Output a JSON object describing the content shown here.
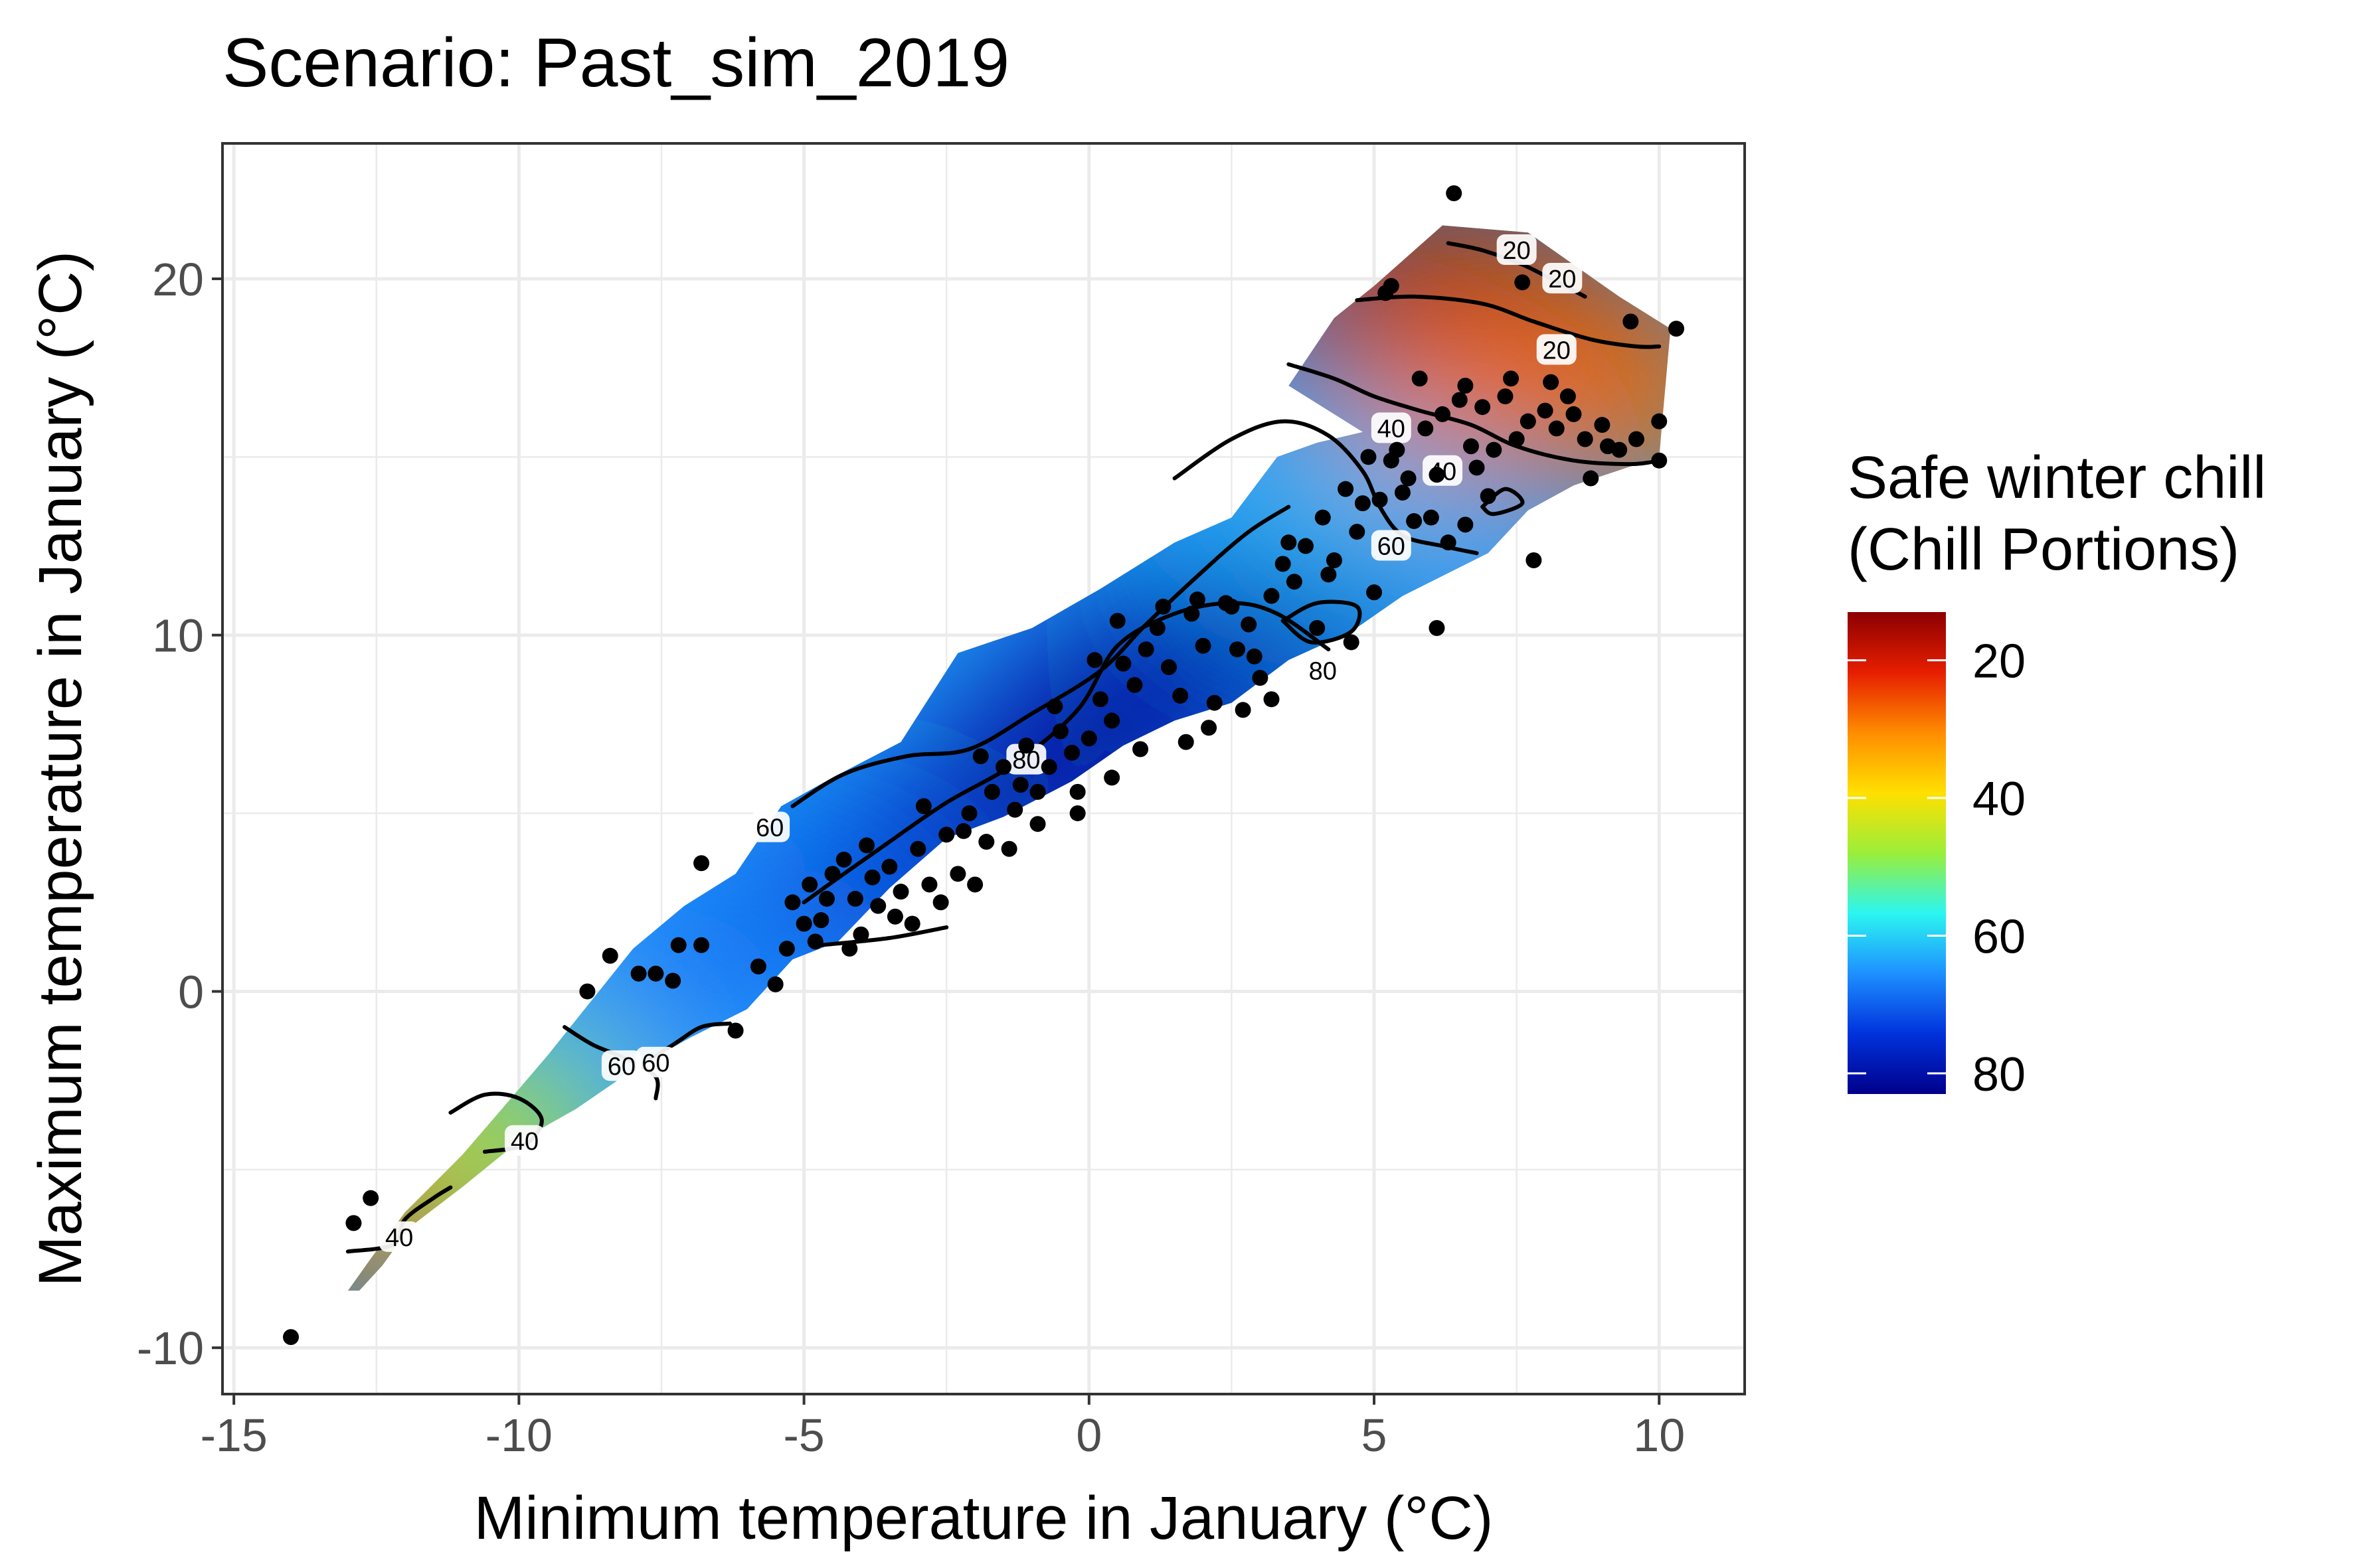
{
  "chart_data": {
    "type": "heatmap",
    "title": "Scenario: Past_sim_2019",
    "xlabel": "Minimum temperature in January (°C)",
    "ylabel": "Maximum temperature in January (°C)",
    "xlim": [
      -15.2,
      11.5
    ],
    "ylim": [
      -11.3,
      23.8
    ],
    "x_ticks": [
      -15,
      -10,
      -5,
      0,
      5,
      10
    ],
    "x_tick_labels": [
      "-15",
      "-10",
      "-5",
      "0",
      "5",
      "10"
    ],
    "y_ticks": [
      -10,
      0,
      10,
      20
    ],
    "y_tick_labels": [
      "-10",
      "0",
      "10",
      "20"
    ],
    "grid": true,
    "legend": {
      "title_line1": "Safe winter chill",
      "title_line2": "(Chill Portions)",
      "placement": "right",
      "range": [
        13,
        83
      ],
      "ticks": [
        20,
        40,
        60,
        80
      ],
      "tick_labels": [
        "20",
        "40",
        "60",
        "80"
      ],
      "colors": [
        "#8B0000",
        "#E61E00",
        "#FF8C00",
        "#FFE000",
        "#9BEE3A",
        "#2BF6F0",
        "#1E90FF",
        "#0032DC",
        "#00008B"
      ]
    },
    "colors": {
      "grid": "#EBEBEB",
      "panel_border": "#333333",
      "contour": "#000000",
      "points": "#000000"
    },
    "surface_polygon": [
      [
        -13.0,
        -8.4
      ],
      [
        -12.6,
        -7.5
      ],
      [
        -12.0,
        -6.2
      ],
      [
        -11.0,
        -4.6
      ],
      [
        -10.3,
        -3.3
      ],
      [
        -9.5,
        -1.8
      ],
      [
        -8.7,
        -0.2
      ],
      [
        -8.0,
        1.2
      ],
      [
        -7.1,
        2.4
      ],
      [
        -6.2,
        3.3
      ],
      [
        -5.4,
        5.2
      ],
      [
        -4.5,
        6.0
      ],
      [
        -3.3,
        7.0
      ],
      [
        -2.3,
        9.5
      ],
      [
        -1.0,
        10.2
      ],
      [
        0.2,
        11.3
      ],
      [
        1.5,
        12.6
      ],
      [
        2.5,
        13.3
      ],
      [
        3.3,
        15.0
      ],
      [
        4.0,
        15.4
      ],
      [
        4.8,
        15.7
      ],
      [
        3.5,
        17.0
      ],
      [
        4.3,
        18.9
      ],
      [
        5.0,
        19.8
      ],
      [
        6.2,
        21.5
      ],
      [
        7.7,
        21.3
      ],
      [
        9.3,
        19.5
      ],
      [
        10.2,
        18.6
      ],
      [
        10.0,
        15.0
      ],
      [
        8.5,
        14.2
      ],
      [
        7.7,
        13.5
      ],
      [
        7.0,
        12.3
      ],
      [
        5.5,
        11.1
      ],
      [
        4.6,
        10.1
      ],
      [
        3.5,
        9.3
      ],
      [
        2.5,
        8.1
      ],
      [
        1.5,
        7.6
      ],
      [
        0.6,
        6.9
      ],
      [
        -0.3,
        5.9
      ],
      [
        -1.5,
        4.9
      ],
      [
        -2.5,
        4.3
      ],
      [
        -3.5,
        2.9
      ],
      [
        -4.4,
        1.4
      ],
      [
        -5.2,
        0.9
      ],
      [
        -6.0,
        -0.5
      ],
      [
        -7.0,
        -1.3
      ],
      [
        -8.0,
        -2.2
      ],
      [
        -9.0,
        -3.3
      ],
      [
        -10.0,
        -4.2
      ],
      [
        -11.0,
        -5.5
      ],
      [
        -11.9,
        -6.6
      ],
      [
        -12.4,
        -7.7
      ],
      [
        -12.8,
        -8.4
      ]
    ],
    "cold_spots": [
      {
        "x": -0.5,
        "y": 6.2,
        "value": 83
      },
      {
        "x": 1.5,
        "y": 9.0,
        "value": 81
      },
      {
        "x": -3.8,
        "y": 2.8,
        "value": 76
      },
      {
        "x": 3.7,
        "y": 9.9,
        "value": 79
      },
      {
        "x": -6.5,
        "y": 1.0,
        "value": 68
      },
      {
        "x": 4.5,
        "y": 13.5,
        "value": 62
      }
    ],
    "warm_spots": [
      {
        "x": 6.5,
        "y": 20.3,
        "value": 14
      },
      {
        "x": 8.8,
        "y": 18.0,
        "value": 18
      },
      {
        "x": 5.0,
        "y": 19.0,
        "value": 16
      },
      {
        "x": 9.5,
        "y": 16.5,
        "value": 28
      },
      {
        "x": 7.0,
        "y": 17.0,
        "value": 28
      },
      {
        "x": -12.4,
        "y": -6.3,
        "value": 25
      },
      {
        "x": -10.5,
        "y": -4.0,
        "value": 45
      }
    ],
    "contours": [
      {
        "level": 20,
        "points": [
          [
            4.7,
            19.4
          ],
          [
            5.7,
            19.5
          ],
          [
            6.9,
            19.3
          ],
          [
            7.8,
            18.8
          ],
          [
            8.8,
            18.3
          ],
          [
            9.6,
            18.1
          ],
          [
            10.0,
            18.1
          ]
        ]
      },
      {
        "level": 20,
        "points": [
          [
            6.3,
            21.0
          ],
          [
            6.9,
            20.8
          ],
          [
            7.6,
            20.4
          ],
          [
            8.1,
            20.0
          ],
          [
            8.7,
            19.5
          ]
        ]
      },
      {
        "level": 40,
        "points": [
          [
            3.5,
            17.6
          ],
          [
            4.3,
            17.2
          ],
          [
            5.0,
            16.7
          ],
          [
            5.8,
            16.3
          ],
          [
            6.7,
            15.9
          ],
          [
            7.5,
            15.3
          ],
          [
            8.5,
            14.9
          ],
          [
            9.5,
            14.8
          ],
          [
            10.0,
            14.9
          ]
        ]
      },
      {
        "level": 60,
        "points": [
          [
            1.5,
            14.4
          ],
          [
            2.5,
            15.5
          ],
          [
            3.4,
            16.0
          ],
          [
            4.2,
            15.6
          ],
          [
            4.8,
            14.6
          ],
          [
            5.1,
            13.6
          ],
          [
            5.5,
            12.8
          ],
          [
            6.2,
            12.5
          ],
          [
            6.8,
            12.3
          ]
        ]
      },
      {
        "level": 60,
        "points": [
          [
            -5.2,
            5.2
          ],
          [
            -4.3,
            6.1
          ],
          [
            -3.2,
            6.6
          ],
          [
            -2.1,
            6.8
          ],
          [
            -1.0,
            7.8
          ],
          [
            0.2,
            9.0
          ],
          [
            1.0,
            10.3
          ],
          [
            2.0,
            11.8
          ],
          [
            2.8,
            12.9
          ],
          [
            3.5,
            13.6
          ]
        ]
      },
      {
        "level": 80,
        "points": [
          [
            -5.0,
            2.5
          ],
          [
            -4.3,
            3.3
          ],
          [
            -3.5,
            4.2
          ],
          [
            -2.5,
            5.3
          ],
          [
            -1.3,
            6.4
          ],
          [
            -0.2,
            7.9
          ],
          [
            0.5,
            9.7
          ],
          [
            1.5,
            10.6
          ],
          [
            2.5,
            10.9
          ],
          [
            3.3,
            10.6
          ],
          [
            4.2,
            9.6
          ]
        ]
      },
      {
        "level": 80,
        "points": [
          [
            -4.7,
            1.3
          ],
          [
            -3.5,
            1.5
          ],
          [
            -2.5,
            1.8
          ]
        ]
      },
      {
        "level": 80,
        "points": [
          [
            3.4,
            10.4
          ],
          [
            4.0,
            10.9
          ],
          [
            4.7,
            10.8
          ],
          [
            4.6,
            10.1
          ],
          [
            3.9,
            9.8
          ],
          [
            3.4,
            10.4
          ]
        ]
      },
      {
        "level": 60,
        "points": [
          [
            6.9,
            13.6
          ],
          [
            7.3,
            14.1
          ],
          [
            7.6,
            13.7
          ],
          [
            7.1,
            13.4
          ],
          [
            6.9,
            13.6
          ]
        ]
      },
      {
        "level": 60,
        "points": [
          [
            -9.2,
            -1.0
          ],
          [
            -8.7,
            -1.5
          ],
          [
            -8.1,
            -1.9
          ],
          [
            -7.6,
            -2.4
          ],
          [
            -7.6,
            -3.0
          ]
        ]
      },
      {
        "level": 60,
        "points": [
          [
            -8.0,
            -2.2
          ],
          [
            -7.3,
            -1.5
          ],
          [
            -6.8,
            -1.0
          ],
          [
            -6.3,
            -0.9
          ]
        ]
      },
      {
        "level": 40,
        "points": [
          [
            -11.2,
            -3.4
          ],
          [
            -10.6,
            -2.9
          ],
          [
            -10.0,
            -3.0
          ],
          [
            -9.6,
            -3.6
          ],
          [
            -9.9,
            -4.3
          ],
          [
            -10.6,
            -4.5
          ]
        ]
      },
      {
        "level": 40,
        "points": [
          [
            -13.0,
            -7.3
          ],
          [
            -12.2,
            -7.1
          ],
          [
            -12.0,
            -6.4
          ],
          [
            -11.5,
            -5.8
          ],
          [
            -11.2,
            -5.5
          ]
        ]
      }
    ],
    "contour_labels": [
      {
        "level": "20",
        "x": 7.5,
        "y": 20.8
      },
      {
        "level": "20",
        "x": 8.3,
        "y": 20.0
      },
      {
        "level": "20",
        "x": 8.2,
        "y": 18.0
      },
      {
        "level": "40",
        "x": 5.3,
        "y": 15.8
      },
      {
        "level": "40",
        "x": 6.2,
        "y": 14.6
      },
      {
        "level": "60",
        "x": 5.3,
        "y": 12.5
      },
      {
        "level": "80",
        "x": 4.1,
        "y": 9.0
      },
      {
        "level": "80",
        "x": -1.1,
        "y": 6.5
      },
      {
        "level": "60",
        "x": -5.6,
        "y": 4.6
      },
      {
        "level": "60",
        "x": -8.2,
        "y": -2.1
      },
      {
        "level": "60",
        "x": -7.6,
        "y": -2.0
      },
      {
        "level": "40",
        "x": -9.9,
        "y": -4.2
      },
      {
        "level": "40",
        "x": -12.1,
        "y": -6.9
      }
    ],
    "points": [
      [
        -14.0,
        -9.7
      ],
      [
        -12.9,
        -6.5
      ],
      [
        -12.6,
        -5.8
      ],
      [
        -8.8,
        0.0
      ],
      [
        -8.4,
        1.0
      ],
      [
        -7.9,
        0.5
      ],
      [
        -7.6,
        0.5
      ],
      [
        -7.3,
        0.3
      ],
      [
        -7.2,
        1.3
      ],
      [
        -6.8,
        3.6
      ],
      [
        -6.8,
        1.3
      ],
      [
        -6.2,
        -1.1
      ],
      [
        -5.8,
        0.7
      ],
      [
        -5.5,
        0.2
      ],
      [
        -5.3,
        1.2
      ],
      [
        -5.0,
        1.9
      ],
      [
        -5.2,
        2.5
      ],
      [
        -4.9,
        3.0
      ],
      [
        -4.7,
        2.0
      ],
      [
        -4.5,
        3.3
      ],
      [
        -4.3,
        3.7
      ],
      [
        -4.1,
        2.6
      ],
      [
        -4.0,
        1.6
      ],
      [
        -3.8,
        3.2
      ],
      [
        -3.7,
        2.4
      ],
      [
        -3.5,
        3.5
      ],
      [
        -3.3,
        2.8
      ],
      [
        -3.1,
        1.9
      ],
      [
        -3.0,
        4.0
      ],
      [
        -2.8,
        3.0
      ],
      [
        -2.6,
        2.5
      ],
      [
        -2.5,
        4.4
      ],
      [
        -2.3,
        3.3
      ],
      [
        -2.1,
        5.0
      ],
      [
        -2.0,
        3.0
      ],
      [
        -1.8,
        4.2
      ],
      [
        -1.7,
        5.6
      ],
      [
        -1.5,
        6.3
      ],
      [
        -1.3,
        5.1
      ],
      [
        -1.1,
        6.9
      ],
      [
        -0.9,
        5.6
      ],
      [
        -0.7,
        6.3
      ],
      [
        -0.5,
        7.3
      ],
      [
        -0.3,
        6.7
      ],
      [
        -0.2,
        5.6
      ],
      [
        0.0,
        7.1
      ],
      [
        0.2,
        8.2
      ],
      [
        0.4,
        7.6
      ],
      [
        0.6,
        9.2
      ],
      [
        0.8,
        8.6
      ],
      [
        1.0,
        9.6
      ],
      [
        1.2,
        10.2
      ],
      [
        1.4,
        9.1
      ],
      [
        1.6,
        8.3
      ],
      [
        1.8,
        10.6
      ],
      [
        2.0,
        9.7
      ],
      [
        2.2,
        8.1
      ],
      [
        2.4,
        10.9
      ],
      [
        2.6,
        9.6
      ],
      [
        2.8,
        10.3
      ],
      [
        3.0,
        8.8
      ],
      [
        3.2,
        11.1
      ],
      [
        3.4,
        12.0
      ],
      [
        3.6,
        11.5
      ],
      [
        3.8,
        12.5
      ],
      [
        4.0,
        10.2
      ],
      [
        4.1,
        13.3
      ],
      [
        4.3,
        12.1
      ],
      [
        4.5,
        14.1
      ],
      [
        4.7,
        12.9
      ],
      [
        4.9,
        15.0
      ],
      [
        5.1,
        13.8
      ],
      [
        5.3,
        14.9
      ],
      [
        5.5,
        14.0
      ],
      [
        5.7,
        13.2
      ],
      [
        5.9,
        15.8
      ],
      [
        6.1,
        14.5
      ],
      [
        6.3,
        12.6
      ],
      [
        6.5,
        16.6
      ],
      [
        6.7,
        15.3
      ],
      [
        6.9,
        16.4
      ],
      [
        7.1,
        15.2
      ],
      [
        7.3,
        16.7
      ],
      [
        7.5,
        15.5
      ],
      [
        7.7,
        16.0
      ],
      [
        7.8,
        12.1
      ],
      [
        8.0,
        16.3
      ],
      [
        8.2,
        15.8
      ],
      [
        8.4,
        16.7
      ],
      [
        8.7,
        15.5
      ],
      [
        9.0,
        15.9
      ],
      [
        9.3,
        15.2
      ],
      [
        9.6,
        15.5
      ],
      [
        10.0,
        16.0
      ],
      [
        10.0,
        14.9
      ],
      [
        10.3,
        18.6
      ],
      [
        9.5,
        18.8
      ],
      [
        7.6,
        19.9
      ],
      [
        5.3,
        19.8
      ],
      [
        5.2,
        19.6
      ],
      [
        6.4,
        22.4
      ],
      [
        5.6,
        14.4
      ],
      [
        6.1,
        10.2
      ],
      [
        5.0,
        11.2
      ],
      [
        4.6,
        9.8
      ],
      [
        3.2,
        8.2
      ],
      [
        2.9,
        9.4
      ],
      [
        2.1,
        7.4
      ],
      [
        1.7,
        7.0
      ],
      [
        0.9,
        6.8
      ],
      [
        0.4,
        6.0
      ],
      [
        -0.2,
        5.0
      ],
      [
        -0.9,
        4.7
      ],
      [
        -1.4,
        4.0
      ],
      [
        -2.2,
        4.5
      ],
      [
        -3.4,
        2.1
      ],
      [
        -4.2,
        1.2
      ],
      [
        -4.8,
        1.4
      ],
      [
        -4.6,
        2.6
      ],
      [
        -3.9,
        4.1
      ],
      [
        -2.9,
        5.2
      ],
      [
        -1.9,
        6.6
      ],
      [
        -1.2,
        5.8
      ],
      [
        -0.6,
        8.0
      ],
      [
        0.1,
        9.3
      ],
      [
        0.5,
        10.4
      ],
      [
        1.3,
        10.8
      ],
      [
        1.9,
        11.0
      ],
      [
        2.5,
        10.8
      ],
      [
        2.7,
        7.9
      ],
      [
        3.5,
        12.6
      ],
      [
        4.2,
        11.7
      ],
      [
        4.8,
        13.7
      ],
      [
        5.4,
        15.2
      ],
      [
        6.0,
        13.3
      ],
      [
        6.6,
        13.1
      ],
      [
        7.0,
        13.9
      ],
      [
        6.8,
        14.7
      ],
      [
        6.2,
        16.2
      ],
      [
        5.8,
        17.2
      ],
      [
        6.6,
        17.0
      ],
      [
        7.4,
        17.2
      ],
      [
        8.1,
        17.1
      ],
      [
        8.5,
        16.2
      ],
      [
        9.1,
        15.3
      ],
      [
        8.8,
        14.4
      ]
    ]
  }
}
